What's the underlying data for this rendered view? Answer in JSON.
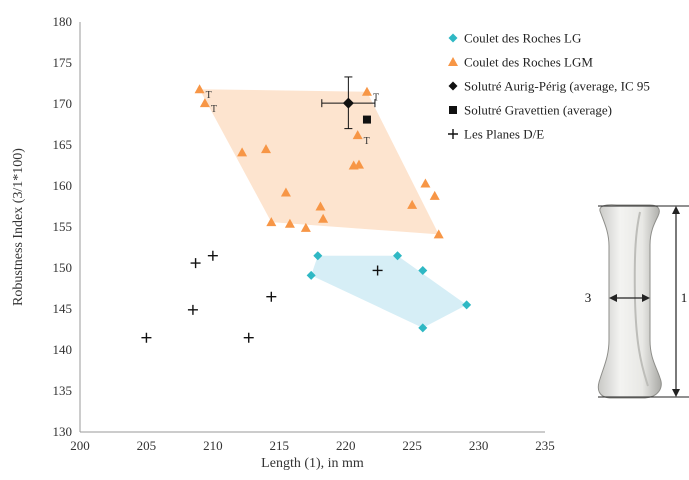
{
  "chart_data": {
    "type": "scatter",
    "xlabel": "Length (1), in mm",
    "ylabel": "Robustness Index (3/1*100)",
    "xlim": [
      200,
      235
    ],
    "ylim": [
      130,
      180
    ],
    "xticks": [
      200,
      205,
      210,
      215,
      220,
      225,
      230,
      235
    ],
    "yticks": [
      130,
      135,
      140,
      145,
      150,
      155,
      160,
      165,
      170,
      175,
      180
    ],
    "x_tick_labels": [
      "200",
      "205",
      "210",
      "215",
      "220",
      "225",
      "230",
      "235"
    ],
    "y_tick_labels": [
      "130",
      "135",
      "140",
      "145",
      "150",
      "155",
      "160",
      "165",
      "170",
      "175",
      "180"
    ],
    "grid": false,
    "legend_position": "top-right",
    "series": [
      {
        "name": "Coulet des Roches LG",
        "marker": "diamond",
        "color": "#2fb8c4",
        "hull_color": "#d6eef6",
        "points": [
          [
            217.9,
            151.5
          ],
          [
            217.4,
            149.1
          ],
          [
            223.9,
            151.5
          ],
          [
            225.8,
            149.7
          ],
          [
            229.1,
            145.5
          ],
          [
            225.8,
            142.7
          ]
        ],
        "hull": [
          [
            217.9,
            151.5
          ],
          [
            223.9,
            151.5
          ],
          [
            229.1,
            145.5
          ],
          [
            225.8,
            142.7
          ],
          [
            217.4,
            149.1
          ]
        ]
      },
      {
        "name": "Coulet des Roches LGM",
        "marker": "triangle",
        "color": "#f79646",
        "hull_color": "#fde4cf",
        "points": [
          [
            209.0,
            171.8
          ],
          [
            209.4,
            170.1
          ],
          [
            221.6,
            171.5
          ],
          [
            220.9,
            166.2
          ],
          [
            212.2,
            164.1
          ],
          [
            214.0,
            164.5
          ],
          [
            220.6,
            162.5
          ],
          [
            221.0,
            162.6
          ],
          [
            215.5,
            159.2
          ],
          [
            218.1,
            157.5
          ],
          [
            226.0,
            160.3
          ],
          [
            226.7,
            158.8
          ],
          [
            225.0,
            157.7
          ],
          [
            218.3,
            156.0
          ],
          [
            214.4,
            155.6
          ],
          [
            215.8,
            155.4
          ],
          [
            217.0,
            154.9
          ],
          [
            227.0,
            154.1
          ]
        ],
        "hull": [
          [
            209.0,
            171.8
          ],
          [
            221.6,
            171.5
          ],
          [
            227.0,
            154.1
          ],
          [
            214.4,
            155.6
          ]
        ]
      },
      {
        "name": "Solutré Aurig-Périg (average, IC 95",
        "marker": "diamond",
        "color": "#111111",
        "points": [
          [
            220.2,
            170.1
          ]
        ],
        "error_x": [
          218.2,
          222.2
        ],
        "error_y": [
          167.0,
          173.3
        ]
      },
      {
        "name": "Solutré Gravettien (average)",
        "marker": "square",
        "color": "#111111",
        "points": [
          [
            221.6,
            168.1
          ]
        ]
      },
      {
        "name": "Les Planes D/E",
        "marker": "plus",
        "color": "#111111",
        "points": [
          [
            205.0,
            141.5
          ],
          [
            208.5,
            144.9
          ],
          [
            208.7,
            150.6
          ],
          [
            210.0,
            151.5
          ],
          [
            212.7,
            141.5
          ],
          [
            214.4,
            146.5
          ],
          [
            222.4,
            149.7
          ]
        ]
      }
    ],
    "annotations": [
      {
        "text": "T",
        "x": 209.0,
        "y": 171.8
      },
      {
        "text": "T",
        "x": 209.4,
        "y": 170.1
      },
      {
        "text": "T",
        "x": 221.6,
        "y": 171.5
      },
      {
        "text": "T",
        "x": 220.9,
        "y": 166.2
      }
    ]
  },
  "bone_figure": {
    "label_width": "3",
    "label_length": "1"
  }
}
